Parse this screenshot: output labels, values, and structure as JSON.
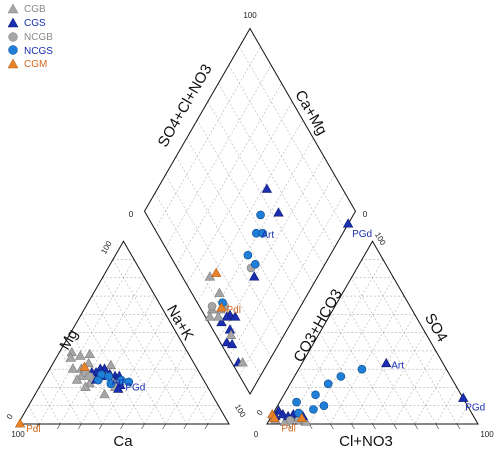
{
  "chart_data": {
    "type": "scatter",
    "subtype": "piper-diagram",
    "legend_placement": "top-left",
    "legend": [
      {
        "label": "CGB",
        "marker": "triangle",
        "color": "#a6a6a6"
      },
      {
        "label": "CGS",
        "marker": "triangle",
        "color": "#1a2fb0"
      },
      {
        "label": "NCGB",
        "marker": "circle",
        "color": "#a6a6a6"
      },
      {
        "label": "NCGS",
        "marker": "circle",
        "color": "#1f7fd8"
      },
      {
        "label": "CGM",
        "marker": "triangle",
        "color": "#e8822b"
      }
    ],
    "legend_text_colors": {
      "CGB": "#8a8a8a",
      "CGS": "#1a2fb0",
      "NCGB": "#8a8a8a",
      "NCGS": "#1a2fb0",
      "CGM": "#d2691e"
    },
    "axes": {
      "cation": {
        "left": "Mg",
        "right": "Na+K",
        "bottom": "Ca",
        "tick_min": "0",
        "tick_max": "100"
      },
      "anion": {
        "left": "CO3+HCO3",
        "right": "SO4",
        "bottom": "Cl+NO3",
        "tick_min": "0",
        "tick_max": "100"
      },
      "diamond": {
        "upper_left": "SO4+Cl+NO3",
        "upper_right": "Ca+Mg",
        "tick_min": "0",
        "tick_max": "100"
      }
    },
    "grid_step": 10,
    "grid": true,
    "cation_points": [
      {
        "g": "CGB",
        "ca": 55,
        "mg": 39
      },
      {
        "g": "CGB",
        "ca": 52,
        "mg": 37
      },
      {
        "g": "CGB",
        "ca": 47,
        "mg": 38
      },
      {
        "g": "CGB",
        "ca": 57,
        "mg": 36
      },
      {
        "g": "CGB",
        "ca": 50,
        "mg": 33
      },
      {
        "g": "CGB",
        "ca": 59,
        "mg": 30
      },
      {
        "g": "CGB",
        "ca": 55,
        "mg": 30
      },
      {
        "g": "CGB",
        "ca": 57,
        "mg": 26
      },
      {
        "g": "CGB",
        "ca": 60,
        "mg": 24
      },
      {
        "g": "CGB",
        "ca": 55,
        "mg": 22
      },
      {
        "g": "CGB",
        "ca": 44,
        "mg": 20
      },
      {
        "g": "CGB",
        "ca": 51,
        "mg": 16
      },
      {
        "g": "CGB",
        "ca": 40,
        "mg": 32
      },
      {
        "g": "CGB",
        "ca": 58,
        "mg": 20
      },
      {
        "g": "CGS",
        "ca": 46,
        "mg": 30
      },
      {
        "g": "CGS",
        "ca": 44,
        "mg": 30
      },
      {
        "g": "CGS",
        "ca": 46,
        "mg": 28
      },
      {
        "g": "CGS",
        "ca": 49,
        "mg": 28
      },
      {
        "g": "CGS",
        "ca": 51,
        "mg": 28
      },
      {
        "g": "CGS",
        "ca": 43,
        "mg": 27
      },
      {
        "g": "CGS",
        "ca": 47,
        "mg": 26
      },
      {
        "g": "CGS",
        "ca": 41,
        "mg": 26
      },
      {
        "g": "CGS",
        "ca": 51,
        "mg": 24
      },
      {
        "g": "CGS",
        "ca": 43,
        "mg": 24
      },
      {
        "g": "CGS",
        "ca": 41,
        "mg": 21
      },
      {
        "g": "CGS",
        "ca": 43,
        "mg": 19
      },
      {
        "g": "CGS",
        "ca": 39,
        "mg": 26
      },
      {
        "g": "NCGB",
        "ca": 54,
        "mg": 28
      },
      {
        "g": "NCGB",
        "ca": 53,
        "mg": 26
      },
      {
        "g": "NCGB",
        "ca": 44,
        "mg": 23
      },
      {
        "g": "NCGS",
        "ca": 47,
        "mg": 27
      },
      {
        "g": "NCGS",
        "ca": 50,
        "mg": 24
      },
      {
        "g": "NCGS",
        "ca": 44,
        "mg": 26
      },
      {
        "g": "NCGS",
        "ca": 39,
        "mg": 24
      },
      {
        "g": "NCGS",
        "ca": 36,
        "mg": 23
      },
      {
        "g": "NCGS",
        "ca": 45,
        "mg": 22
      },
      {
        "g": "CGM",
        "ca": 53,
        "mg": 31
      },
      {
        "g": "CGM",
        "ca": 99,
        "mg": 0
      }
    ],
    "anion_points": [
      {
        "g": "CGB",
        "cl": 3,
        "so4": 2
      },
      {
        "g": "CGB",
        "cl": 8,
        "so4": 1
      },
      {
        "g": "CGB",
        "cl": 12,
        "so4": 3
      },
      {
        "g": "CGB",
        "cl": 16,
        "so4": 3
      },
      {
        "g": "CGB",
        "cl": 18,
        "so4": 1
      },
      {
        "g": "CGS",
        "cl": 2,
        "so4": 7
      },
      {
        "g": "CGS",
        "cl": 5,
        "so4": 5
      },
      {
        "g": "CGS",
        "cl": 8,
        "so4": 4
      },
      {
        "g": "CGS",
        "cl": 10,
        "so4": 5
      },
      {
        "g": "CGS",
        "cl": 13,
        "so4": 4
      },
      {
        "g": "CGS",
        "cl": 15,
        "so4": 4
      },
      {
        "g": "CGS",
        "cl": 40,
        "so4": 33
      },
      {
        "g": "CGS",
        "cl": 86,
        "so4": 14
      },
      {
        "g": "CGS",
        "cl": 2,
        "so4": 4
      },
      {
        "g": "NCGB",
        "cl": 10,
        "so4": 2
      },
      {
        "g": "NCGB",
        "cl": 14,
        "so4": 2
      },
      {
        "g": "NCGS",
        "cl": 12,
        "so4": 6
      },
      {
        "g": "NCGS",
        "cl": 18,
        "so4": 8
      },
      {
        "g": "NCGS",
        "cl": 22,
        "so4": 10
      },
      {
        "g": "NCGS",
        "cl": 15,
        "so4": 16
      },
      {
        "g": "NCGS",
        "cl": 18,
        "so4": 22
      },
      {
        "g": "NCGS",
        "cl": 22,
        "so4": 26
      },
      {
        "g": "NCGS",
        "cl": 30,
        "so4": 30
      },
      {
        "g": "NCGS",
        "cl": 8,
        "so4": 12
      },
      {
        "g": "CGM",
        "cl": 15,
        "so4": 3
      },
      {
        "g": "CGM",
        "cl": 0,
        "so4": 5
      },
      {
        "g": "CGM",
        "cl": 2,
        "so4": 3
      }
    ],
    "diamond_points": [
      {
        "g": "CGS",
        "a": 93,
        "b": 100
      },
      {
        "g": "CGS",
        "a": 64,
        "b": 52
      },
      {
        "g": "CGS",
        "a": 63,
        "b": 64
      },
      {
        "g": "CGS",
        "a": 34,
        "b": 70
      },
      {
        "g": "CGS",
        "a": 12,
        "b": 69
      },
      {
        "g": "CGS",
        "a": 10,
        "b": 68
      },
      {
        "g": "CGS",
        "a": 6,
        "b": 67
      },
      {
        "g": "CGS",
        "a": 14,
        "b": 72
      },
      {
        "g": "CGS",
        "a": 3,
        "b": 75
      },
      {
        "g": "CGS",
        "a": 3,
        "b": 86
      },
      {
        "g": "CGS",
        "a": 5,
        "b": 78
      },
      {
        "g": "CGS",
        "a": 8,
        "b": 73
      },
      {
        "g": "CGB",
        "a": 13,
        "b": 58
      },
      {
        "g": "CGB",
        "a": 13,
        "b": 49
      },
      {
        "g": "CGB",
        "a": 6,
        "b": 64
      },
      {
        "g": "CGB",
        "a": 9,
        "b": 63
      },
      {
        "g": "CGB",
        "a": 5,
        "b": 59
      },
      {
        "g": "CGB",
        "a": 2,
        "b": 60
      },
      {
        "g": "CGB",
        "a": 7,
        "b": 75
      },
      {
        "g": "CGB",
        "a": 5,
        "b": 88
      },
      {
        "g": "NCGB",
        "a": 35,
        "b": 66
      },
      {
        "g": "NCGB",
        "a": 12,
        "b": 64
      },
      {
        "g": "NCGB",
        "a": 6,
        "b": 58
      },
      {
        "g": "NCGS",
        "a": 54,
        "b": 56
      },
      {
        "g": "NCGS",
        "a": 47,
        "b": 59
      },
      {
        "g": "NCGS",
        "a": 38,
        "b": 67
      },
      {
        "g": "NCGS",
        "a": 50,
        "b": 62
      },
      {
        "g": "NCGS",
        "a": 37,
        "b": 61
      },
      {
        "g": "NCGS",
        "a": 12,
        "b": 62
      },
      {
        "g": "CGM",
        "a": 17,
        "b": 51
      },
      {
        "g": "CGM",
        "a": 10,
        "b": 63
      }
    ],
    "annotations": [
      {
        "text": "Art",
        "where": "cation",
        "ca": 46,
        "mg": 24,
        "color": "#1a2fb0"
      },
      {
        "text": "PGd",
        "where": "cation",
        "ca": 41,
        "mg": 21,
        "color": "#1a2fb0"
      },
      {
        "text": "Pdl",
        "where": "cation",
        "ca": 99,
        "mg": 0,
        "color": "#d2691e"
      },
      {
        "text": "Art",
        "where": "anion",
        "cl": 40,
        "so4": 33,
        "color": "#1a2fb0"
      },
      {
        "text": "PGd",
        "where": "anion",
        "cl": 86,
        "so4": 14,
        "color": "#1a2fb0"
      },
      {
        "text": "Pdl",
        "where": "anion",
        "cl": 2,
        "so4": 3,
        "color": "#d2691e"
      },
      {
        "text": "Art",
        "where": "diamond",
        "a": 47,
        "b": 59,
        "color": "#1a2fb0"
      },
      {
        "text": "PGd",
        "where": "diamond",
        "a": 93,
        "b": 100,
        "color": "#1a2fb0"
      },
      {
        "text": "Pdl",
        "where": "diamond",
        "a": 10,
        "b": 63,
        "color": "#d2691e"
      }
    ]
  }
}
